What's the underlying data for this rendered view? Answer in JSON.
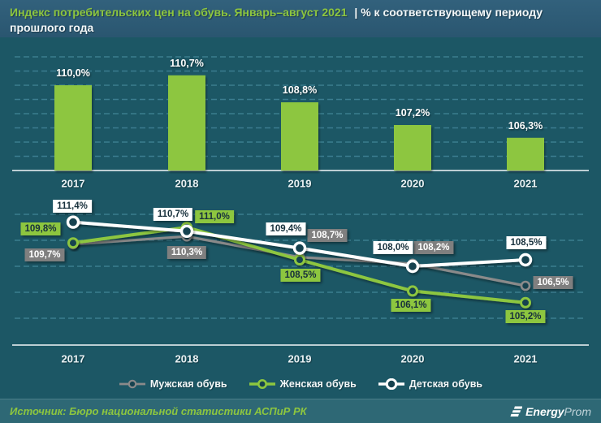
{
  "header": {
    "title_highlight": "Индекс потребительских цен на обувь. Январь–август 2021",
    "title_rest": "| % к соответствующему периоду",
    "title_line2": "прошлого года"
  },
  "chart_data": [
    {
      "type": "bar",
      "categories": [
        "2017",
        "2018",
        "2019",
        "2020",
        "2021"
      ],
      "values": [
        110.0,
        110.7,
        108.8,
        107.2,
        106.3
      ],
      "labels": [
        "110,0%",
        "110,7%",
        "108,8%",
        "107,2%",
        "106,3%"
      ],
      "unit": "%",
      "ylim": [
        104,
        112
      ],
      "grid": "horizontal-dashed",
      "bar_color": "#8dc63f",
      "title": "",
      "xlabel": "",
      "ylabel": ""
    },
    {
      "type": "line",
      "categories": [
        "2017",
        "2018",
        "2019",
        "2020",
        "2021"
      ],
      "series": [
        {
          "name": "Мужская обувь",
          "color": "#8a8a8a",
          "label_bg": "#7f7f7f",
          "label_text_color": "#ffffff",
          "values": [
            109.7,
            110.3,
            108.7,
            108.2,
            106.5
          ],
          "labels": [
            "109,7%",
            "110,3%",
            "108,7%",
            "108,2%",
            "106,5%"
          ]
        },
        {
          "name": "Женская обувь",
          "color": "#8dc63f",
          "label_bg": "#8dc63f",
          "label_text_color": "#17303c",
          "values": [
            109.8,
            111.0,
            108.5,
            106.1,
            105.2
          ],
          "labels": [
            "109,8%",
            "111,0%",
            "108,5%",
            "106,1%",
            "105,2%"
          ]
        },
        {
          "name": "Детская обувь",
          "color": "#ffffff",
          "label_bg": "#ffffff",
          "label_text_color": "#17303c",
          "values": [
            111.4,
            110.7,
            109.4,
            108.0,
            108.5
          ],
          "labels": [
            "111,4%",
            "110,7%",
            "109,4%",
            "108,0%",
            "108,5%"
          ]
        }
      ],
      "unit": "%",
      "ylim": [
        104,
        112.5
      ],
      "grid": "horizontal-dashed",
      "legend_position": "bottom",
      "title": "",
      "xlabel": "",
      "ylabel": ""
    }
  ],
  "footer": {
    "source": "Источник: Бюро национальной статистики АСПиР РК",
    "logo": {
      "bold": "Energy",
      "light": "Prom"
    }
  },
  "colors": {
    "background": "#1c5765",
    "header_bg": "#2e5b73",
    "footer_bg": "#2e6875",
    "accent_green": "#8dc63f",
    "grid": "#3f8294",
    "axis": "#d3dfe3",
    "marker_fill": "#16424f",
    "dark_text": "#17303c"
  }
}
